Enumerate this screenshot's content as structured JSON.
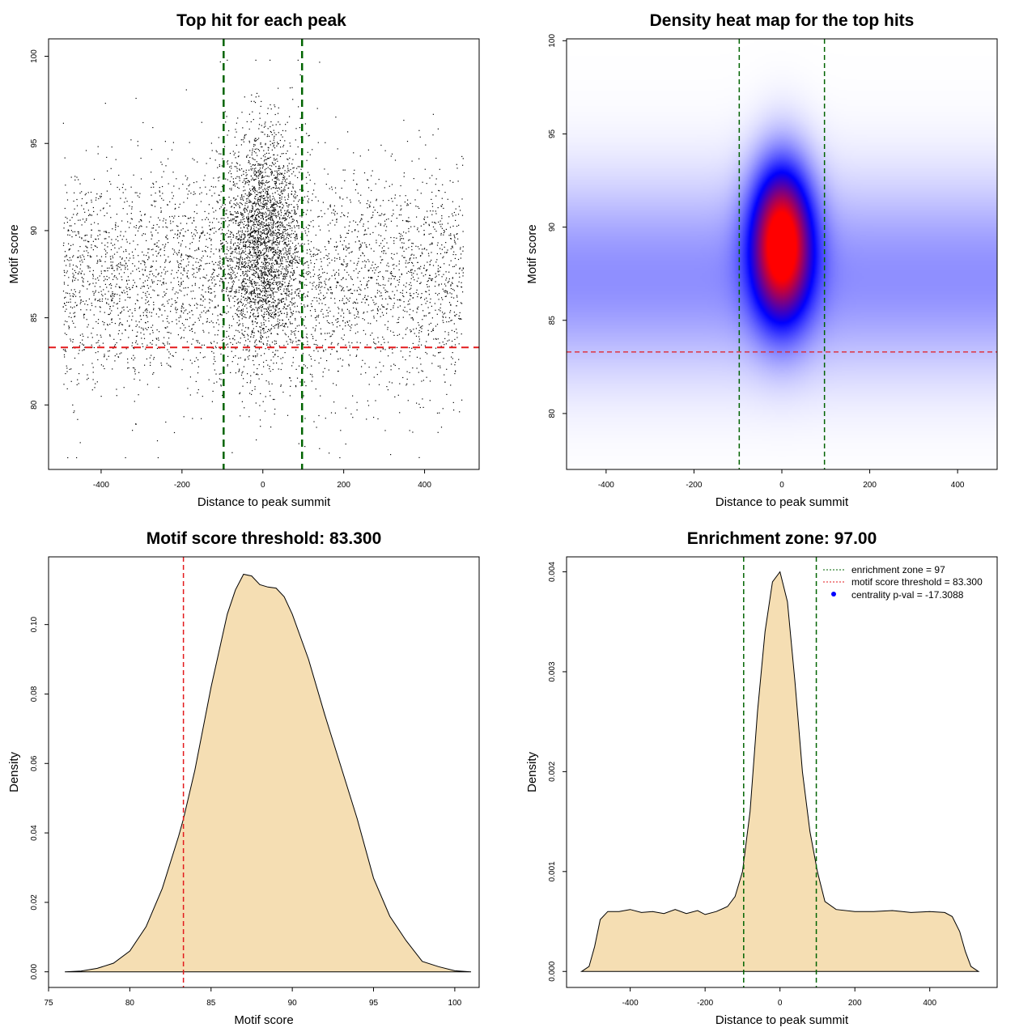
{
  "chart_data": [
    {
      "type": "scatter",
      "title": "Top hit for each peak",
      "xlabel": "Distance to peak summit",
      "ylabel": "Motif score",
      "xlim": [
        -530,
        535
      ],
      "ylim": [
        76.3,
        101
      ],
      "x_ticks": [
        -400,
        -200,
        0,
        200,
        400
      ],
      "x_tick_labels": [
        "-400",
        "-200",
        "0",
        "200",
        "400"
      ],
      "y_ticks": [
        80,
        85,
        90,
        95,
        100
      ],
      "y_tick_labels": [
        "80",
        "85",
        "90",
        "95",
        "100"
      ],
      "point_count_drawn": 6500,
      "background_distribution": {
        "x_range": [
          -495,
          495
        ],
        "score_mean": 87.2,
        "score_sd": 3.3
      },
      "central_cluster": {
        "x_mean": 0,
        "x_sd": 45,
        "score_mean": 89.5,
        "score_sd": 3.2
      },
      "threshold_line_y": 83.3,
      "zone_lines_x": [
        -97,
        97
      ],
      "colors": {
        "points": "#000000",
        "threshold": "#e31a1c",
        "zone": "#006400"
      }
    },
    {
      "type": "heatmap",
      "title": "Density heat map for the top hits",
      "xlabel": "Distance to peak summit",
      "ylabel": "Motif score",
      "xlim": [
        -490,
        490
      ],
      "ylim": [
        77,
        100.1
      ],
      "x_ticks": [
        -400,
        -200,
        0,
        200,
        400
      ],
      "x_tick_labels": [
        "-400",
        "-200",
        "0",
        "200",
        "400"
      ],
      "y_ticks": [
        80,
        85,
        90,
        95,
        100
      ],
      "y_tick_labels": [
        "80",
        "85",
        "90",
        "95",
        "100"
      ],
      "color_scale": [
        "#ffffff",
        "#0000ff",
        "#ff0000"
      ],
      "peak": {
        "x": 0,
        "y": 89.2
      },
      "threshold_line_y": 83.3,
      "zone_lines_x": [
        -97,
        97
      ],
      "colors": {
        "threshold": "#e31a1c",
        "zone": "#006400"
      }
    },
    {
      "type": "area",
      "title": "Motif score threshold: 83.300",
      "xlabel": "Motif score",
      "ylabel": "Density",
      "xlim": [
        75,
        101.5
      ],
      "ylim": [
        -0.0045,
        0.1195
      ],
      "x_ticks": [
        75,
        80,
        85,
        90,
        95,
        100
      ],
      "x_tick_labels": [
        "75",
        "80",
        "85",
        "90",
        "95",
        "100"
      ],
      "y_ticks": [
        0,
        0.02,
        0.04,
        0.06,
        0.08,
        0.1
      ],
      "y_tick_labels": [
        "0.00",
        "0.02",
        "0.04",
        "0.06",
        "0.08",
        "0.10"
      ],
      "x": [
        76,
        77,
        78,
        79,
        80,
        81,
        82,
        83,
        83.3,
        84,
        85,
        86,
        86.5,
        87,
        87.5,
        88,
        88.5,
        89,
        89.5,
        90,
        91,
        92,
        93,
        94,
        95,
        96,
        97,
        98,
        99,
        100,
        101
      ],
      "y": [
        0,
        0.0002,
        0.001,
        0.0025,
        0.006,
        0.013,
        0.024,
        0.039,
        0.044,
        0.058,
        0.082,
        0.103,
        0.11,
        0.1145,
        0.114,
        0.1115,
        0.1108,
        0.1105,
        0.108,
        0.103,
        0.09,
        0.074,
        0.059,
        0.044,
        0.027,
        0.016,
        0.009,
        0.003,
        0.0015,
        0.0003,
        0
      ],
      "threshold_line_x": 83.3,
      "colors": {
        "fill": "#f5deb3",
        "line": "#000000",
        "threshold": "#e31a1c"
      }
    },
    {
      "type": "area",
      "title": "Enrichment zone: 97.00",
      "xlabel": "Distance to peak summit",
      "ylabel": "Density",
      "xlim": [
        -570,
        580
      ],
      "ylim": [
        -0.00016,
        0.00415
      ],
      "x_ticks": [
        -400,
        -200,
        0,
        200,
        400
      ],
      "x_tick_labels": [
        "-400",
        "-200",
        "0",
        "200",
        "400"
      ],
      "y_ticks": [
        0,
        0.001,
        0.002,
        0.003,
        0.004
      ],
      "y_tick_labels": [
        "0.000",
        "0.001",
        "0.002",
        "0.003",
        "0.004"
      ],
      "x": [
        -530,
        -510,
        -495,
        -480,
        -460,
        -430,
        -400,
        -370,
        -340,
        -310,
        -280,
        -250,
        -220,
        -200,
        -170,
        -140,
        -120,
        -100,
        -80,
        -60,
        -40,
        -20,
        0,
        20,
        40,
        60,
        80,
        100,
        120,
        150,
        200,
        250,
        300,
        350,
        400,
        440,
        460,
        480,
        495,
        510,
        530
      ],
      "y": [
        0,
        5e-05,
        0.00025,
        0.00052,
        0.0006,
        0.0006,
        0.00062,
        0.00059,
        0.0006,
        0.00058,
        0.00062,
        0.00058,
        0.00061,
        0.00057,
        0.0006,
        0.00065,
        0.00075,
        0.001,
        0.0016,
        0.0026,
        0.0034,
        0.0039,
        0.004,
        0.0037,
        0.0029,
        0.002,
        0.0014,
        0.001,
        0.0007,
        0.00062,
        0.0006,
        0.0006,
        0.00061,
        0.00059,
        0.0006,
        0.00059,
        0.00055,
        0.0004,
        0.0002,
        5e-05,
        0
      ],
      "zone_lines_x": [
        -97,
        97
      ],
      "legend_position": "top-right",
      "legend": [
        {
          "label": "enrichment zone = 97",
          "style": "dotted-line",
          "color": "#006400"
        },
        {
          "label": "motif score threshold = 83.300",
          "style": "dotted-line",
          "color": "#e31a1c"
        },
        {
          "label": "centrality p-val = -17.3088",
          "style": "point",
          "color": "#0000ff"
        }
      ],
      "colors": {
        "fill": "#f5deb3",
        "line": "#000000",
        "zone": "#006400"
      }
    }
  ]
}
